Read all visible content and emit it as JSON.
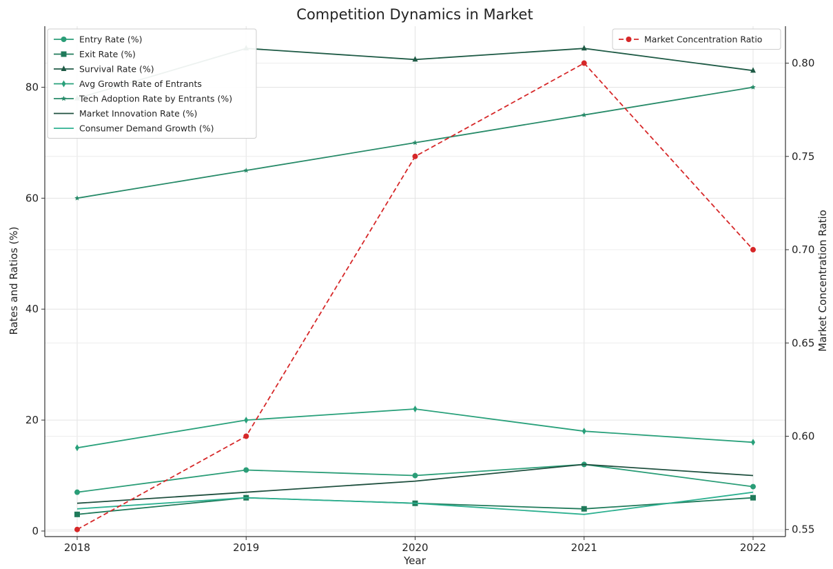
{
  "chart_data": {
    "type": "line",
    "title": "Competition Dynamics in Market",
    "xlabel": "Year",
    "ylabel": "Rates and Ratios (%)",
    "y2label": "Market Concentration Ratio",
    "categories": [
      "2018",
      "2019",
      "2020",
      "2021",
      "2022"
    ],
    "ylim": [
      -1,
      91
    ],
    "y2lim": [
      0.5462,
      0.8198
    ],
    "yticks": [
      0,
      20,
      40,
      60,
      80
    ],
    "y2ticks": [
      "0.55",
      "0.60",
      "0.65",
      "0.70",
      "0.75",
      "0.80"
    ],
    "grid": true,
    "legend_placement": "top-left",
    "legend2_placement": "top-right",
    "series": [
      {
        "name": "Entry Rate (%)",
        "values": [
          7,
          11,
          10,
          12,
          8
        ],
        "color": "#2a9d77",
        "marker": "circle",
        "axis": "left"
      },
      {
        "name": "Exit Rate (%)",
        "values": [
          3,
          6,
          5,
          4,
          6
        ],
        "color": "#1f7a5a",
        "marker": "square",
        "axis": "left"
      },
      {
        "name": "Survival Rate (%)",
        "values": [
          78,
          87,
          85,
          87,
          83
        ],
        "color": "#1e5a45",
        "marker": "triangle",
        "axis": "left"
      },
      {
        "name": "Avg Growth Rate of Entrants",
        "values": [
          15,
          20,
          22,
          18,
          16
        ],
        "color": "#28a07a",
        "marker": "diamond",
        "axis": "left"
      },
      {
        "name": "Tech Adoption Rate by Entrants (%)",
        "values": [
          60,
          65,
          70,
          75,
          80
        ],
        "color": "#268a68",
        "marker": "star",
        "axis": "left"
      },
      {
        "name": "Market Innovation Rate (%)",
        "values": [
          5,
          7,
          9,
          12,
          10
        ],
        "color": "#1e4f3e",
        "marker": "none",
        "axis": "left"
      },
      {
        "name": "Consumer Demand Growth (%)",
        "values": [
          4,
          6,
          5,
          3,
          7
        ],
        "color": "#2cb090",
        "marker": "none",
        "axis": "left"
      },
      {
        "name": "Market Concentration Ratio",
        "values": [
          0.55,
          0.6,
          0.75,
          0.8,
          0.7
        ],
        "color": "#d62728",
        "marker": "circle",
        "dashed": true,
        "axis": "right"
      }
    ]
  }
}
